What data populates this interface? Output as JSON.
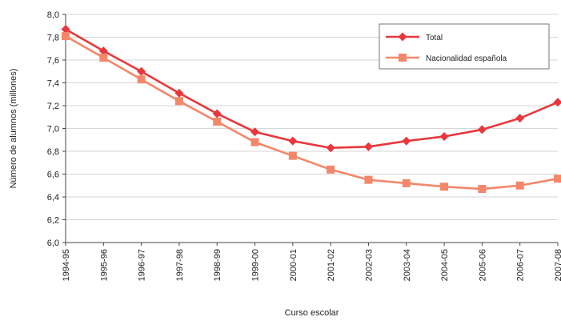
{
  "chart_data": {
    "type": "line",
    "title": "",
    "xlabel": "Curso escolar",
    "ylabel": "Número de alumnos (millones)",
    "categories": [
      "1994-95",
      "1995-96",
      "1996-97",
      "1997-98",
      "1998-99",
      "1999-00",
      "2000-01",
      "2001-02",
      "2002-03",
      "2003-04",
      "2004-05",
      "2005-06",
      "2006-07",
      "2007-08"
    ],
    "ylim": [
      6.0,
      8.0
    ],
    "yticks": [
      "6,0",
      "6,2",
      "6,4",
      "6,6",
      "6,8",
      "7,0",
      "7,2",
      "7,4",
      "7,6",
      "7,8",
      "8,0"
    ],
    "grid": "horizontal",
    "legend_position": "top-right",
    "series": [
      {
        "name": "Total",
        "marker": "diamond",
        "color": "#e8383d",
        "values": [
          7.87,
          7.68,
          7.5,
          7.31,
          7.13,
          6.97,
          6.89,
          6.83,
          6.84,
          6.89,
          6.93,
          6.99,
          7.09,
          7.23
        ]
      },
      {
        "name": "Nacionalidad española",
        "marker": "square",
        "color": "#f4876a",
        "values": [
          7.81,
          7.62,
          7.43,
          7.24,
          7.06,
          6.88,
          6.76,
          6.64,
          6.55,
          6.52,
          6.49,
          6.47,
          6.5,
          6.56
        ]
      }
    ]
  }
}
